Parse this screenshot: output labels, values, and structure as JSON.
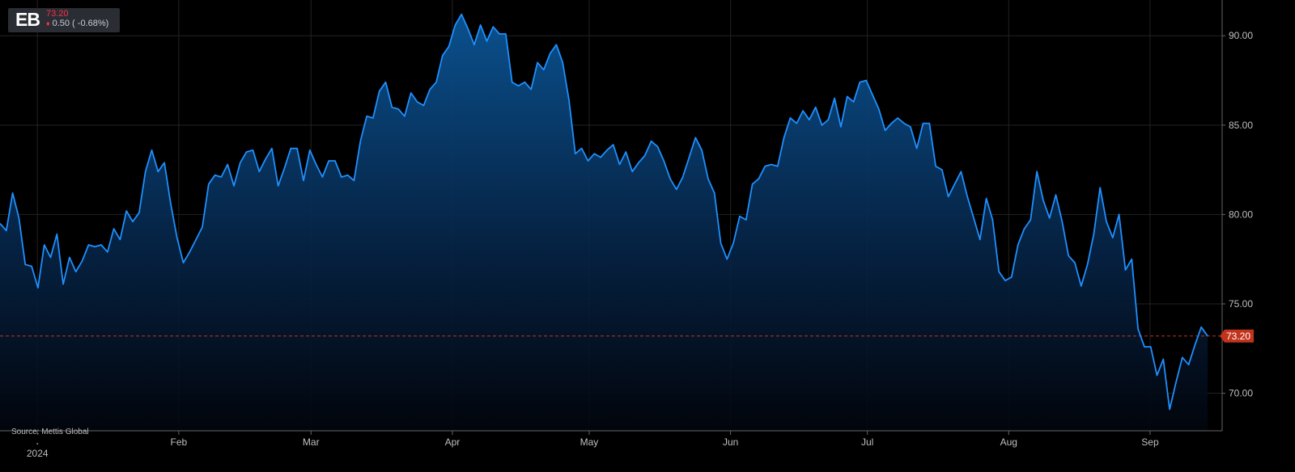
{
  "ticker": {
    "symbol": "EB",
    "last_price": "73.20",
    "change_text": "0.50 ( -0.68%)",
    "direction": "down"
  },
  "source": "Source: Mettis Global",
  "current_price_label": "73.20",
  "colors": {
    "background": "#000000",
    "line": "#1e90ff",
    "grid": "#222222",
    "price_marker": "#c2331c",
    "down": "#ff2e4a",
    "axis_text": "#bfbfbf"
  },
  "chart_data": {
    "type": "area",
    "title": "",
    "xlabel": "",
    "ylabel": "",
    "ylim": [
      67.9,
      92.0
    ],
    "y_axis_side": "right",
    "yticks": [
      70,
      75,
      80,
      85,
      90
    ],
    "ytick_labels": [
      "70.00",
      "75.00",
      "80.00",
      "85.00",
      "90.00"
    ],
    "x_ticks": [
      {
        "label": "2024",
        "x": 8.2
      },
      {
        "label": "Feb",
        "x": 39.2
      },
      {
        "label": "Mar",
        "x": 68.2
      },
      {
        "label": "Apr",
        "x": 99.2
      },
      {
        "label": "May",
        "x": 129.2
      },
      {
        "label": "Jun",
        "x": 160.2
      },
      {
        "label": "Jul",
        "x": 190.2
      },
      {
        "label": "Aug",
        "x": 221.2
      },
      {
        "label": "Sep",
        "x": 252.2
      }
    ],
    "x_start": 0,
    "x_end": 268,
    "reference_line": 73.2,
    "grid": true,
    "series": [
      {
        "values": [
          [
            0,
            79.5
          ],
          [
            1,
            79.1
          ],
          [
            2,
            81.2
          ],
          [
            3,
            79.8
          ],
          [
            4,
            77.2
          ],
          [
            5,
            77.1
          ],
          [
            6,
            75.9
          ],
          [
            7,
            78.3
          ],
          [
            8,
            77.6
          ],
          [
            9,
            78.9
          ],
          [
            10,
            76.1
          ],
          [
            11,
            77.6
          ],
          [
            12,
            76.8
          ],
          [
            13,
            77.4
          ],
          [
            14,
            78.3
          ],
          [
            15,
            78.2
          ],
          [
            16,
            78.3
          ],
          [
            17,
            77.9
          ],
          [
            18,
            79.2
          ],
          [
            19,
            78.6
          ],
          [
            20,
            80.2
          ],
          [
            21,
            79.6
          ],
          [
            22,
            80.1
          ],
          [
            23,
            82.4
          ],
          [
            24,
            83.6
          ],
          [
            25,
            82.4
          ],
          [
            26,
            82.9
          ],
          [
            27,
            80.6
          ],
          [
            28,
            78.7
          ],
          [
            29,
            77.3
          ],
          [
            30,
            77.9
          ],
          [
            31,
            78.6
          ],
          [
            32,
            79.3
          ],
          [
            33,
            81.7
          ],
          [
            34,
            82.2
          ],
          [
            35,
            82.1
          ],
          [
            36,
            82.8
          ],
          [
            37,
            81.6
          ],
          [
            38,
            82.9
          ],
          [
            39,
            83.5
          ],
          [
            40,
            83.6
          ],
          [
            41,
            82.4
          ],
          [
            42,
            83.1
          ],
          [
            43,
            83.7
          ],
          [
            44,
            81.6
          ],
          [
            45,
            82.6
          ],
          [
            46,
            83.7
          ],
          [
            47,
            83.7
          ],
          [
            48,
            81.9
          ],
          [
            49,
            83.6
          ],
          [
            50,
            82.8
          ],
          [
            51,
            82.1
          ],
          [
            52,
            83.0
          ],
          [
            53,
            83.0
          ],
          [
            54,
            82.1
          ],
          [
            55,
            82.2
          ],
          [
            56,
            81.9
          ],
          [
            57,
            84.1
          ],
          [
            58,
            85.5
          ],
          [
            59,
            85.4
          ],
          [
            60,
            86.9
          ],
          [
            61,
            87.4
          ],
          [
            62,
            86.0
          ],
          [
            63,
            85.9
          ],
          [
            64,
            85.5
          ],
          [
            65,
            86.8
          ],
          [
            66,
            86.3
          ],
          [
            67,
            86.1
          ],
          [
            68,
            87.0
          ],
          [
            69,
            87.4
          ],
          [
            70,
            88.9
          ],
          [
            71,
            89.4
          ],
          [
            72,
            90.6
          ],
          [
            73,
            91.2
          ],
          [
            74,
            90.4
          ],
          [
            75,
            89.5
          ],
          [
            76,
            90.6
          ],
          [
            77,
            89.7
          ],
          [
            78,
            90.5
          ],
          [
            79,
            90.1
          ],
          [
            80,
            90.1
          ],
          [
            81,
            87.4
          ],
          [
            82,
            87.2
          ],
          [
            83,
            87.4
          ],
          [
            84,
            87.0
          ],
          [
            85,
            88.5
          ],
          [
            86,
            88.1
          ],
          [
            87,
            89.0
          ],
          [
            88,
            89.5
          ],
          [
            89,
            88.5
          ],
          [
            90,
            86.4
          ],
          [
            91,
            83.4
          ],
          [
            92,
            83.7
          ],
          [
            93,
            83.0
          ],
          [
            94,
            83.4
          ],
          [
            95,
            83.2
          ],
          [
            96,
            83.6
          ],
          [
            97,
            83.9
          ],
          [
            98,
            82.8
          ],
          [
            99,
            83.5
          ],
          [
            100,
            82.4
          ],
          [
            101,
            82.9
          ],
          [
            102,
            83.3
          ],
          [
            103,
            84.1
          ],
          [
            104,
            83.8
          ],
          [
            105,
            83.0
          ],
          [
            106,
            82.0
          ],
          [
            107,
            81.4
          ],
          [
            108,
            82.1
          ],
          [
            109,
            83.2
          ],
          [
            110,
            84.3
          ],
          [
            111,
            83.6
          ],
          [
            112,
            82.0
          ],
          [
            113,
            81.2
          ],
          [
            114,
            78.4
          ],
          [
            115,
            77.5
          ],
          [
            116,
            78.4
          ],
          [
            117,
            79.9
          ],
          [
            118,
            79.7
          ],
          [
            119,
            81.7
          ],
          [
            120,
            82.0
          ],
          [
            121,
            82.7
          ],
          [
            122,
            82.8
          ],
          [
            123,
            82.7
          ],
          [
            124,
            84.3
          ],
          [
            125,
            85.4
          ],
          [
            126,
            85.1
          ],
          [
            127,
            85.8
          ],
          [
            128,
            85.3
          ],
          [
            129,
            86.0
          ],
          [
            130,
            85.0
          ],
          [
            131,
            85.3
          ],
          [
            132,
            86.5
          ],
          [
            133,
            84.9
          ],
          [
            134,
            86.6
          ],
          [
            135,
            86.3
          ],
          [
            136,
            87.4
          ],
          [
            137,
            87.5
          ],
          [
            138,
            86.7
          ],
          [
            139,
            85.9
          ],
          [
            140,
            84.7
          ],
          [
            141,
            85.1
          ],
          [
            142,
            85.4
          ],
          [
            143,
            85.1
          ],
          [
            144,
            84.9
          ],
          [
            145,
            83.7
          ],
          [
            146,
            85.1
          ],
          [
            147,
            85.1
          ],
          [
            148,
            82.7
          ],
          [
            149,
            82.5
          ],
          [
            150,
            81.0
          ],
          [
            151,
            81.7
          ],
          [
            152,
            82.4
          ],
          [
            153,
            81.0
          ],
          [
            154,
            79.8
          ],
          [
            155,
            78.6
          ],
          [
            156,
            80.9
          ],
          [
            157,
            79.7
          ],
          [
            158,
            76.8
          ],
          [
            159,
            76.3
          ],
          [
            160,
            76.5
          ],
          [
            161,
            78.3
          ],
          [
            162,
            79.2
          ],
          [
            163,
            79.7
          ],
          [
            164,
            82.4
          ],
          [
            165,
            80.8
          ],
          [
            166,
            79.8
          ],
          [
            167,
            81.1
          ],
          [
            168,
            79.6
          ],
          [
            169,
            77.7
          ],
          [
            170,
            77.3
          ],
          [
            171,
            76.0
          ],
          [
            172,
            77.2
          ],
          [
            173,
            78.9
          ],
          [
            174,
            81.5
          ],
          [
            175,
            79.6
          ],
          [
            176,
            78.7
          ],
          [
            177,
            80.0
          ],
          [
            178,
            76.9
          ],
          [
            179,
            77.5
          ],
          [
            180,
            73.6
          ],
          [
            181,
            72.6
          ],
          [
            182,
            72.6
          ],
          [
            183,
            71.0
          ],
          [
            184,
            71.9
          ],
          [
            185,
            69.1
          ],
          [
            186,
            70.6
          ],
          [
            187,
            72.0
          ],
          [
            188,
            71.6
          ],
          [
            189,
            72.7
          ],
          [
            190,
            73.7
          ],
          [
            191,
            73.2
          ]
        ]
      }
    ]
  }
}
